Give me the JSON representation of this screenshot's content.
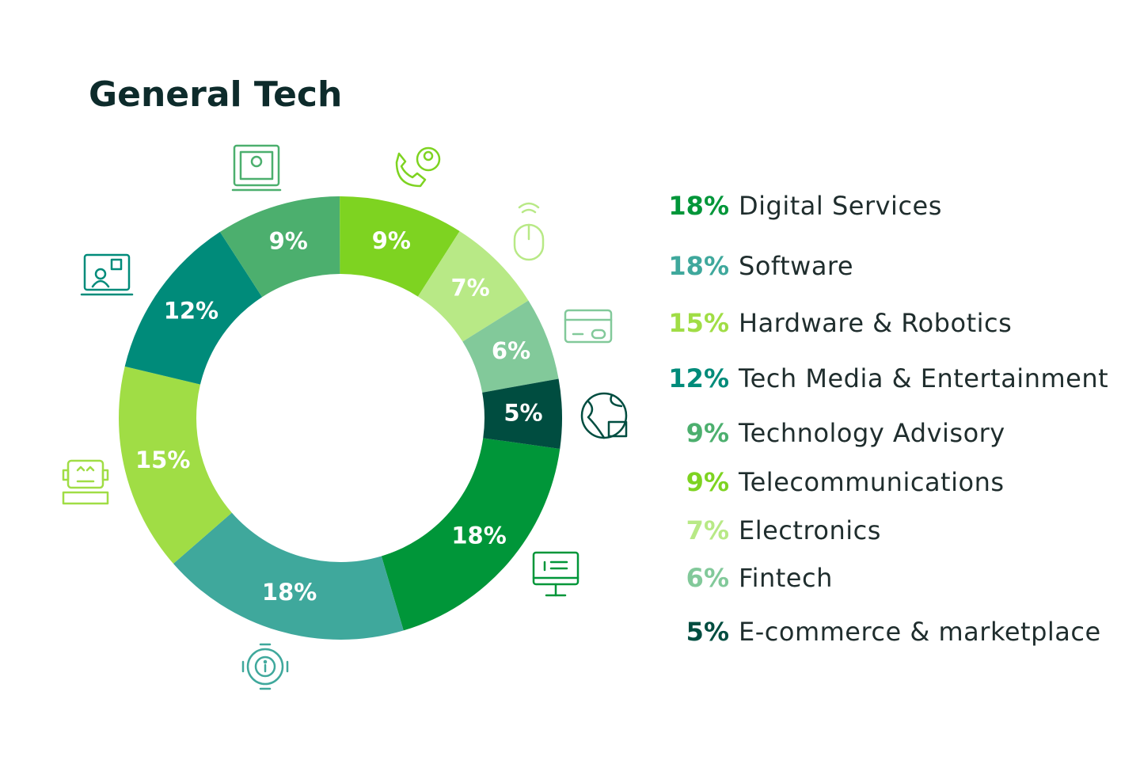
{
  "chart_data": {
    "type": "pie",
    "title": "General Tech",
    "categories": [
      "Digital Services",
      "Software",
      "Hardware & Robotics",
      "Tech Media & Entertainment",
      "Technology Advisory",
      "Telecommunications",
      "Electronics",
      "Fintech",
      "E-commerce & marketplace"
    ],
    "values": [
      18,
      18,
      15,
      12,
      9,
      9,
      7,
      6,
      5
    ],
    "value_labels": [
      "18%",
      "18%",
      "15%",
      "12%",
      "9%",
      "9%",
      "7%",
      "6%",
      "5%"
    ],
    "colors": [
      "#009639",
      "#3fa89c",
      "#a0dd45",
      "#008b7a",
      "#4caf6e",
      "#7ed321",
      "#b8e986",
      "#82c99a",
      "#004d40"
    ],
    "donut": true
  }
}
